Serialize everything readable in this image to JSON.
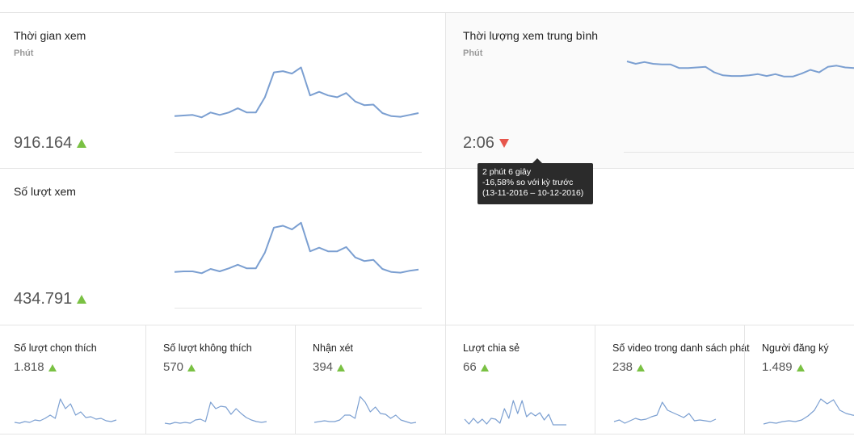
{
  "cards": {
    "watch_time": {
      "title": "Thời gian xem",
      "unit": "Phút",
      "value": "916.164",
      "trend": "up",
      "sparkline": [
        60,
        61,
        62,
        58,
        66,
        62,
        66,
        73,
        66,
        66,
        91,
        132,
        134,
        130,
        140,
        94,
        100,
        94,
        91,
        98,
        84,
        78,
        79,
        65,
        60,
        59,
        62,
        65
      ]
    },
    "avg_duration": {
      "title": "Thời lượng xem trung bình",
      "unit": "Phút",
      "value": "2:06",
      "trend": "down",
      "sparkline": [
        150,
        146,
        149,
        146,
        145,
        145,
        139,
        139,
        140,
        141,
        132,
        127,
        126,
        126,
        127,
        129,
        126,
        129,
        125,
        125,
        130,
        136,
        132,
        141,
        143,
        140,
        139
      ]
    },
    "views": {
      "title": "Số lượt xem",
      "unit": "",
      "value": "434.791",
      "trend": "up",
      "sparkline": [
        60,
        61,
        61,
        58,
        65,
        61,
        66,
        72,
        66,
        66,
        92,
        133,
        136,
        130,
        141,
        94,
        100,
        94,
        94,
        101,
        84,
        78,
        80,
        65,
        60,
        59,
        62,
        64
      ]
    }
  },
  "tooltip": {
    "line1": "2 phút 6 giây",
    "line2": "-16,58% so với kỳ trước",
    "line3": "(13-11-2016 – 10-12-2016)"
  },
  "small_cards": [
    {
      "title": "Số lượt chọn thích",
      "value": "1.818",
      "trend": "up",
      "sparkline": [
        5,
        4,
        6,
        5,
        8,
        7,
        10,
        14,
        10,
        34,
        22,
        28,
        14,
        18,
        11,
        12,
        9,
        10,
        7,
        6,
        8
      ]
    },
    {
      "title": "Số lượt không thích",
      "value": "570",
      "trend": "up",
      "sparkline": [
        4,
        3,
        5,
        4,
        5,
        4,
        8,
        9,
        6,
        30,
        22,
        25,
        24,
        15,
        22,
        16,
        11,
        8,
        6,
        5,
        6
      ]
    },
    {
      "title": "Nhận xét",
      "value": "394",
      "trend": "up",
      "sparkline": [
        5,
        6,
        7,
        6,
        6,
        8,
        14,
        14,
        10,
        37,
        30,
        18,
        24,
        16,
        15,
        10,
        14,
        8,
        6,
        4,
        5
      ]
    },
    {
      "title": "Lượt chia sẻ",
      "value": "66",
      "trend": "up",
      "sparkline": [
        9,
        3,
        10,
        4,
        9,
        3,
        10,
        9,
        4,
        22,
        10,
        32,
        16,
        32,
        12,
        17,
        13,
        17,
        8,
        15,
        2,
        2,
        2,
        2
      ]
    },
    {
      "title": "Số video trong danh sách phát",
      "value": "238",
      "trend": "up",
      "sparkline": [
        6,
        8,
        4,
        7,
        10,
        8,
        9,
        12,
        14,
        30,
        20,
        17,
        14,
        11,
        16,
        7,
        8,
        7,
        6,
        9
      ]
    },
    {
      "title": "Người đăng ký",
      "value": "1.489",
      "trend": "up",
      "sparkline": [
        3,
        5,
        4,
        6,
        7,
        6,
        8,
        13,
        20,
        34,
        28,
        33,
        20,
        16,
        14,
        13,
        12
      ]
    }
  ],
  "colors": {
    "line": "#7b9fd1",
    "up": "#7ac143",
    "down": "#e7564c",
    "tooltip_bg": "#2b2b2b"
  }
}
